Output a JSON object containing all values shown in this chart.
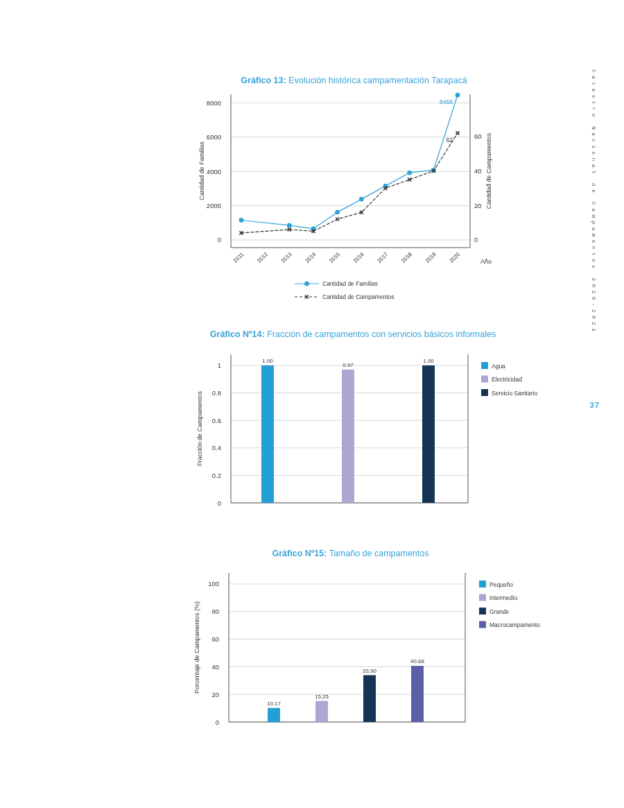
{
  "chart_data": [
    {
      "type": "line",
      "title": "Gráfico 13: Evolución histórica campamentación Tarapacá",
      "xlabel": "Año",
      "ylabel": "Cantidad de Familias",
      "y2label": "Cantidad de Campamentos",
      "categories": [
        "2011",
        "2012",
        "2013",
        "2014",
        "2015",
        "2016",
        "2017",
        "2018",
        "2019",
        "2020"
      ],
      "series": [
        {
          "name": "Cantidad de Familias",
          "color": "#2ea3d6",
          "marker": "circle",
          "line_style": "solid",
          "values": [
            1150,
            null,
            850,
            650,
            1620,
            2380,
            3150,
            3920,
            4080,
            8458
          ],
          "value_labels": [
            null,
            null,
            null,
            null,
            null,
            null,
            null,
            null,
            null,
            "8458"
          ]
        },
        {
          "name": "Cantidad de Campamentos",
          "color": "#333333",
          "marker": "cross",
          "line_style": "dashed",
          "axis": "y2",
          "values": [
            4,
            null,
            6,
            5,
            12,
            16,
            30,
            35,
            40,
            62
          ],
          "value_labels": [
            null,
            null,
            null,
            null,
            null,
            null,
            null,
            null,
            null,
            "62"
          ]
        }
      ],
      "ylim": [
        -450,
        8500
      ],
      "yticks": [
        0,
        2000,
        4000,
        6000,
        8000
      ],
      "y2lim": [
        -4.5,
        84.5
      ],
      "y2ticks": [
        0,
        20,
        40,
        60
      ],
      "grid": "y",
      "legend": "bottom",
      "annotations": [
        "Catastro Nacional de Campamentos 2020-2021"
      ]
    },
    {
      "type": "bar",
      "title": "Gráfico Nº14: Fracción de campamentos con servicios básicos informales",
      "ylabel": "Fracción de Campamentos",
      "categories": [
        null,
        null,
        null
      ],
      "series": [
        {
          "name": "Agua",
          "color": "#239fd8",
          "values": [
            1.0,
            null,
            null
          ],
          "value_labels": [
            "1.00",
            null,
            null
          ]
        },
        {
          "name": "Electricidad",
          "color": "#aea6d2",
          "values": [
            null,
            0.97,
            null
          ],
          "value_labels": [
            null,
            "0.97",
            null
          ]
        },
        {
          "name": "Servicio Sanitario",
          "color": "#163556",
          "values": [
            null,
            null,
            1.0
          ],
          "value_labels": [
            null,
            null,
            "1.00"
          ]
        }
      ],
      "ylim": [
        0,
        1.08
      ],
      "yticks": [
        0,
        0.2,
        0.4,
        0.6,
        0.8,
        1
      ],
      "grid": "y",
      "legend": "right",
      "annotations": [
        "37"
      ]
    },
    {
      "type": "bar",
      "title": "Gráfico Nº15: Tamaño de campamentos",
      "ylabel": "Porcentaje de Campamentos (%)",
      "categories": [
        null,
        null,
        null,
        null
      ],
      "series": [
        {
          "name": "Pequeño",
          "color": "#239fd8",
          "values": [
            10.17,
            null,
            null,
            null
          ],
          "value_labels": [
            "10.17",
            null,
            null,
            null
          ]
        },
        {
          "name": "Intermedio",
          "color": "#aea6d2",
          "values": [
            null,
            15.25,
            null,
            null
          ],
          "value_labels": [
            null,
            "15.25",
            null,
            null
          ]
        },
        {
          "name": "Grande",
          "color": "#163556",
          "values": [
            null,
            null,
            33.9,
            null
          ],
          "value_labels": [
            null,
            null,
            "33.90",
            null
          ]
        },
        {
          "name": "Macrocampamento",
          "color": "#5b5fa8",
          "values": [
            null,
            null,
            null,
            40.68
          ],
          "value_labels": [
            null,
            null,
            null,
            "40.68"
          ]
        }
      ],
      "ylim": [
        0,
        108
      ],
      "yticks": [
        0,
        20,
        40,
        60,
        80,
        100
      ],
      "grid": "y",
      "legend": "right"
    }
  ]
}
